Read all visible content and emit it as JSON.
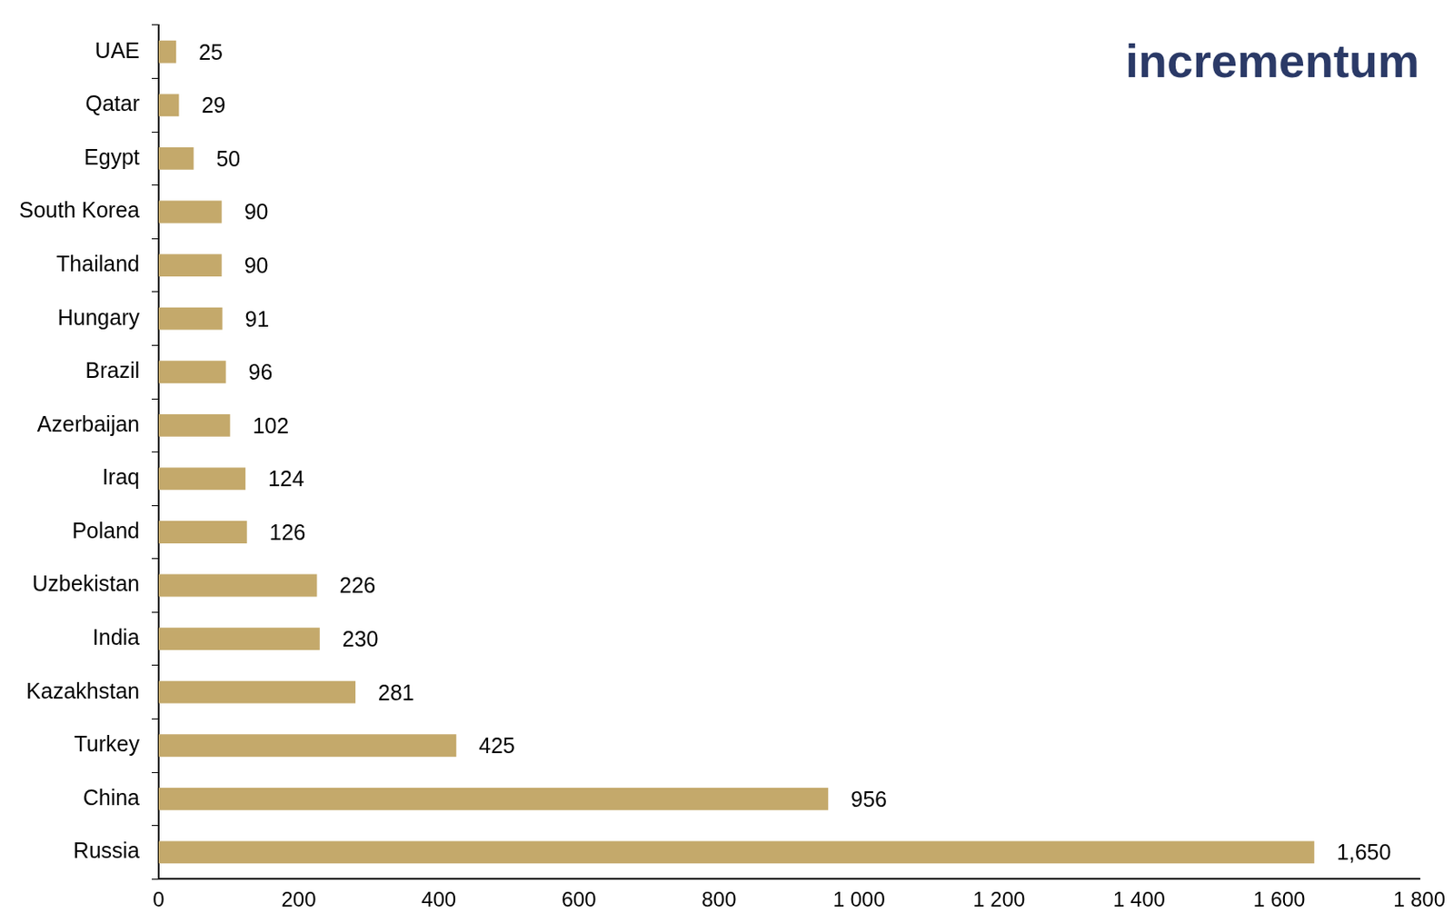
{
  "chart_data": {
    "type": "bar",
    "orientation": "horizontal",
    "categories": [
      "UAE",
      "Qatar",
      "Egypt",
      "South Korea",
      "Thailand",
      "Hungary",
      "Brazil",
      "Azerbaijan",
      "Iraq",
      "Poland",
      "Uzbekistan",
      "India",
      "Kazakhstan",
      "Turkey",
      "China",
      "Russia"
    ],
    "values": [
      25,
      29,
      50,
      90,
      90,
      91,
      96,
      102,
      124,
      126,
      226,
      230,
      281,
      425,
      956,
      1650
    ],
    "value_labels": [
      "25",
      "29",
      "50",
      "90",
      "90",
      "91",
      "96",
      "102",
      "124",
      "126",
      "226",
      "230",
      "281",
      "425",
      "956",
      "1,650"
    ],
    "data_labels": true,
    "color": "#c4a96b",
    "xlim": [
      0,
      1800
    ],
    "xticks": [
      0,
      200,
      400,
      600,
      800,
      {
        "value": 1000,
        "label": "1 000"
      },
      {
        "value": 1200,
        "label": "1 200"
      },
      {
        "value": 1400,
        "label": "1 400"
      },
      {
        "value": 1600,
        "label": "1 600"
      },
      {
        "value": 1800,
        "label": "1 800"
      }
    ],
    "grid": false,
    "annotations": [
      "incrementum"
    ]
  }
}
